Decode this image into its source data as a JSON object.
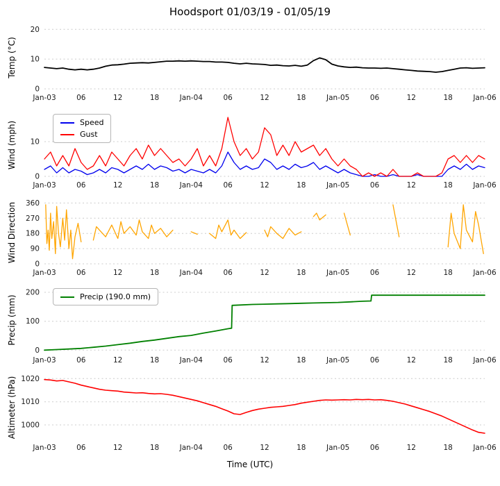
{
  "chart_data": {
    "type": "line",
    "title": "Hoodsport 01/03/19 - 01/05/19",
    "xlabel": "Time (UTC)",
    "x_axis": {
      "xlim": [
        0,
        72
      ],
      "xticks": [
        0,
        6,
        12,
        18,
        24,
        30,
        36,
        42,
        48,
        54,
        60,
        66,
        72
      ],
      "xticklabels": [
        "Jan-03",
        "06",
        "12",
        "18",
        "Jan-04",
        "06",
        "12",
        "18",
        "Jan-05",
        "06",
        "12",
        "18",
        "Jan-06"
      ]
    },
    "panels": [
      {
        "name": "temperature",
        "ylabel": "Temp (°C)",
        "ylim": [
          0,
          21
        ],
        "yticks": [
          0,
          10,
          20
        ],
        "series": [
          {
            "name": "Temp",
            "color": "#000000",
            "width": 1.8,
            "x": [
              0,
              1,
              2,
              3,
              4,
              5,
              6,
              7,
              8,
              9,
              10,
              11,
              12,
              13,
              14,
              15,
              16,
              17,
              18,
              19,
              20,
              21,
              22,
              23,
              24,
              25,
              26,
              27,
              28,
              29,
              30,
              31,
              32,
              33,
              34,
              35,
              36,
              37,
              38,
              39,
              40,
              41,
              42,
              43,
              44,
              45,
              46,
              47,
              48,
              49,
              50,
              51,
              52,
              53,
              54,
              55,
              56,
              57,
              58,
              59,
              60,
              61,
              62,
              63,
              64,
              65,
              66,
              67,
              68,
              69,
              70,
              71,
              72
            ],
            "y": [
              7.2,
              7.0,
              6.8,
              7.0,
              6.6,
              6.4,
              6.6,
              6.4,
              6.6,
              7.0,
              7.6,
              8.0,
              8.1,
              8.3,
              8.6,
              8.7,
              8.8,
              8.7,
              8.9,
              9.1,
              9.3,
              9.3,
              9.4,
              9.3,
              9.4,
              9.3,
              9.2,
              9.2,
              9.0,
              9.0,
              8.9,
              8.6,
              8.4,
              8.6,
              8.4,
              8.3,
              8.2,
              7.9,
              8.0,
              7.8,
              7.7,
              7.9,
              7.6,
              8.0,
              9.5,
              10.4,
              9.8,
              8.3,
              7.7,
              7.4,
              7.2,
              7.3,
              7.1,
              7.0,
              7.0,
              6.9,
              7.0,
              6.8,
              6.6,
              6.4,
              6.2,
              6.0,
              5.9,
              5.8,
              5.6,
              5.8,
              6.2,
              6.6,
              7.0,
              7.1,
              6.9,
              7.0,
              7.1
            ]
          }
        ]
      },
      {
        "name": "wind",
        "ylabel": "Wind (mph)",
        "ylim": [
          0,
          18
        ],
        "yticks": [
          0,
          10
        ],
        "legend": {
          "items": [
            {
              "label": "Speed",
              "color": "#0000ee"
            },
            {
              "label": "Gust",
              "color": "#ff0000"
            }
          ]
        },
        "series": [
          {
            "name": "Speed",
            "color": "#0000ee",
            "width": 1.3,
            "x": [
              0,
              1,
              2,
              3,
              4,
              5,
              6,
              7,
              8,
              9,
              10,
              11,
              12,
              13,
              14,
              15,
              16,
              17,
              18,
              19,
              20,
              21,
              22,
              23,
              24,
              25,
              26,
              27,
              28,
              29,
              30,
              31,
              32,
              33,
              34,
              35,
              36,
              37,
              38,
              39,
              40,
              41,
              42,
              43,
              44,
              45,
              46,
              47,
              48,
              49,
              50,
              51,
              52,
              53,
              54,
              55,
              56,
              57,
              58,
              59,
              60,
              61,
              62,
              63,
              64,
              65,
              66,
              67,
              68,
              69,
              70,
              71,
              72
            ],
            "y": [
              2,
              3,
              1,
              2.5,
              1,
              2,
              1.5,
              0.5,
              1,
              2,
              1,
              2.5,
              2,
              1,
              2,
              3,
              2,
              3.5,
              2,
              3,
              2.5,
              1.5,
              2,
              1,
              2,
              1.5,
              1,
              2,
              1,
              3,
              7,
              4,
              2,
              3,
              2,
              2.5,
              5,
              4,
              2,
              3,
              2,
              3.5,
              2.5,
              3,
              4,
              2,
              3,
              2,
              1,
              2,
              1,
              0.5,
              0,
              0,
              0.5,
              0,
              0,
              0.5,
              0,
              0,
              0,
              0.5,
              0,
              0,
              0,
              0,
              2,
              3,
              2,
              3.5,
              2,
              3,
              2.5
            ]
          },
          {
            "name": "Gust",
            "color": "#ff0000",
            "width": 1.3,
            "x": [
              0,
              1,
              2,
              3,
              4,
              5,
              6,
              7,
              8,
              9,
              10,
              11,
              12,
              13,
              14,
              15,
              16,
              17,
              18,
              19,
              20,
              21,
              22,
              23,
              24,
              25,
              26,
              27,
              28,
              29,
              30,
              31,
              32,
              33,
              34,
              35,
              36,
              37,
              38,
              39,
              40,
              41,
              42,
              43,
              44,
              45,
              46,
              47,
              48,
              49,
              50,
              51,
              52,
              53,
              54,
              55,
              56,
              57,
              58,
              59,
              60,
              61,
              62,
              63,
              64,
              65,
              66,
              67,
              68,
              69,
              70,
              71,
              72
            ],
            "y": [
              5,
              7,
              3,
              6,
              3,
              8,
              4,
              2,
              3,
              6,
              3,
              7,
              5,
              3,
              6,
              8,
              5,
              9,
              6,
              8,
              6,
              4,
              5,
              3,
              5,
              8,
              3,
              6,
              3,
              8,
              17,
              10,
              6,
              8,
              5,
              7,
              14,
              12,
              6,
              9,
              6,
              10,
              7,
              8,
              9,
              6,
              8,
              5,
              3,
              5,
              3,
              2,
              0,
              1,
              0,
              1,
              0,
              2,
              0,
              0,
              0,
              1,
              0,
              0,
              0,
              1,
              5,
              6,
              4,
              6,
              4,
              6,
              5
            ]
          }
        ]
      },
      {
        "name": "wind-direction",
        "ylabel": "Wind Direction",
        "ylim": [
          0,
          370
        ],
        "yticks": [
          0,
          90,
          180,
          270,
          360
        ],
        "gap_break": 1.7,
        "series": [
          {
            "name": "Direction",
            "color": "#ffa500",
            "width": 1.3,
            "x": [
              0.2,
              0.4,
              0.6,
              0.8,
              1.0,
              1.2,
              1.5,
              1.8,
              2.0,
              2.3,
              2.6,
              3.0,
              3.3,
              3.6,
              4.0,
              4.3,
              4.6,
              5.0,
              5.5,
              6.0,
              8,
              8.5,
              9,
              10,
              11,
              12,
              12.5,
              13,
              14,
              15,
              15.5,
              16,
              17,
              17.5,
              18,
              19,
              20,
              21,
              24,
              25,
              27,
              28,
              28.5,
              29,
              30,
              30.5,
              31,
              32,
              33,
              36,
              36.5,
              37,
              38,
              39,
              40,
              41,
              42,
              44,
              44.5,
              45,
              46,
              49,
              50,
              54,
              57,
              58,
              66,
              66.5,
              67,
              68,
              68.5,
              69,
              70,
              70.5,
              71,
              71.8
            ],
            "y": [
              350,
              120,
              200,
              80,
              300,
              150,
              250,
              60,
              340,
              180,
              100,
              270,
              140,
              320,
              90,
              200,
              30,
              160,
              240,
              130,
              140,
              220,
              200,
              160,
              230,
              150,
              250,
              180,
              220,
              170,
              260,
              190,
              150,
              230,
              180,
              210,
              160,
              200,
              190,
              175,
              180,
              150,
              230,
              190,
              260,
              170,
              200,
              150,
              185,
              200,
              160,
              220,
              180,
              150,
              210,
              170,
              190,
              280,
              300,
              260,
              290,
              300,
              170,
              140,
              350,
              160,
              100,
              300,
              180,
              90,
              350,
              200,
              130,
              310,
              230,
              60
            ]
          }
        ]
      },
      {
        "name": "precipitation",
        "ylabel": "Precip (mm)",
        "ylim": [
          -4,
          212
        ],
        "yticks": [
          0,
          100,
          200
        ],
        "legend": {
          "items": [
            {
              "label": "Precip (190.0 mm)",
              "color": "#008000"
            }
          ]
        },
        "series": [
          {
            "name": "Precip (190.0 mm)",
            "color": "#008000",
            "width": 1.8,
            "x": [
              0,
              2,
              4,
              6,
              8,
              10,
              12,
              14,
              16,
              18,
              20,
              22,
              24,
              26,
              28,
              30,
              30.6,
              30.7,
              32,
              34,
              36,
              38,
              40,
              42,
              44,
              46,
              48,
              50,
              52,
              53.4,
              53.5,
              56,
              60,
              64,
              68,
              72
            ],
            "y": [
              0,
              2,
              4,
              6,
              10,
              14,
              19,
              24,
              30,
              35,
              41,
              47,
              51,
              59,
              66,
              74,
              76,
              155,
              156,
              158,
              159,
              160,
              161,
              162,
              163,
              164,
              165,
              167,
              169,
              170,
              190,
              190,
              190,
              190,
              190,
              190
            ]
          }
        ]
      },
      {
        "name": "altimeter",
        "ylabel": "Altimeter (hPa)",
        "ylim": [
          994,
          1021
        ],
        "yticks": [
          1000,
          1010,
          1020
        ],
        "series": [
          {
            "name": "Altimeter",
            "color": "#ff0000",
            "width": 1.6,
            "x": [
              0,
              1,
              2,
              3,
              4,
              5,
              6,
              7,
              8,
              9,
              10,
              11,
              12,
              13,
              14,
              15,
              16,
              17,
              18,
              19,
              20,
              21,
              22,
              23,
              24,
              25,
              26,
              27,
              28,
              29,
              30,
              31,
              32,
              33,
              34,
              35,
              36,
              37,
              38,
              39,
              40,
              41,
              42,
              43,
              44,
              45,
              46,
              47,
              48,
              49,
              50,
              51,
              52,
              53,
              54,
              55,
              56,
              57,
              58,
              59,
              60,
              61,
              62,
              63,
              64,
              65,
              66,
              67,
              68,
              69,
              70,
              71,
              72
            ],
            "y": [
              1019.6,
              1019.4,
              1019.0,
              1019.2,
              1018.6,
              1018.0,
              1017.2,
              1016.6,
              1016.0,
              1015.4,
              1015.0,
              1014.8,
              1014.6,
              1014.2,
              1014.0,
              1013.8,
              1013.9,
              1013.6,
              1013.4,
              1013.5,
              1013.2,
              1012.8,
              1012.2,
              1011.6,
              1011.0,
              1010.4,
              1009.6,
              1008.8,
              1008.0,
              1007.0,
              1006.0,
              1004.8,
              1004.5,
              1005.4,
              1006.2,
              1006.8,
              1007.2,
              1007.6,
              1007.8,
              1008.0,
              1008.4,
              1008.8,
              1009.4,
              1009.8,
              1010.2,
              1010.6,
              1010.8,
              1010.7,
              1010.8,
              1010.9,
              1010.8,
              1011.0,
              1010.9,
              1011.0,
              1010.8,
              1010.9,
              1010.6,
              1010.2,
              1009.6,
              1009.0,
              1008.2,
              1007.4,
              1006.6,
              1005.8,
              1004.8,
              1003.8,
              1002.6,
              1001.4,
              1000.2,
              999.0,
              997.8,
              996.8,
              996.4
            ]
          }
        ]
      }
    ]
  }
}
